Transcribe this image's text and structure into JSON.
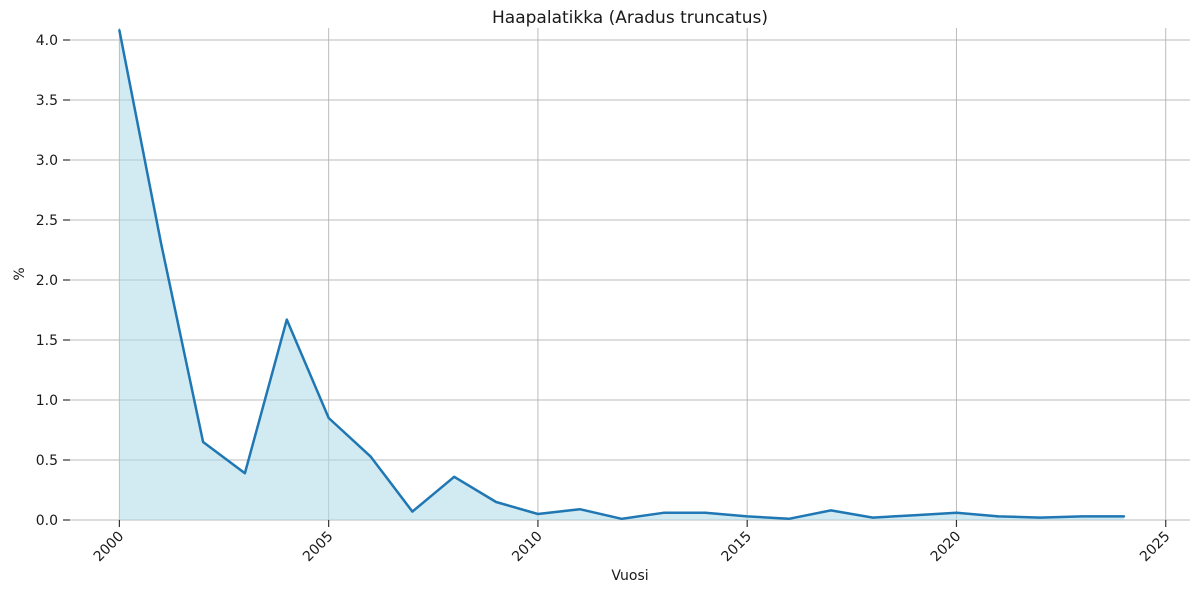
{
  "chart_data": {
    "type": "area",
    "title": "Haapalatikka (Aradus truncatus)",
    "xlabel": "Vuosi",
    "ylabel": "%",
    "x": [
      2000,
      2001,
      2002,
      2003,
      2004,
      2005,
      2006,
      2007,
      2008,
      2009,
      2010,
      2011,
      2012,
      2013,
      2014,
      2015,
      2016,
      2017,
      2018,
      2019,
      2020,
      2021,
      2022,
      2023,
      2024
    ],
    "values": [
      4.08,
      2.3,
      0.65,
      0.39,
      1.67,
      0.85,
      0.53,
      0.07,
      0.36,
      0.15,
      0.05,
      0.09,
      0.01,
      0.06,
      0.06,
      0.03,
      0.01,
      0.08,
      0.02,
      0.04,
      0.06,
      0.03,
      0.02,
      0.03,
      0.03
    ],
    "xticks": [
      2000,
      2005,
      2010,
      2015,
      2020,
      2025
    ],
    "yticks": [
      0.0,
      0.5,
      1.0,
      1.5,
      2.0,
      2.5,
      3.0,
      3.5,
      4.0
    ],
    "xlim": [
      1998.82,
      2025.58
    ],
    "ylim": [
      0,
      4.1
    ],
    "grid": true,
    "xtick_rotation_deg": 45,
    "legend": "none",
    "colors": {
      "line": "#1f77b4",
      "fill": "rgba(173,216,230,0.55)",
      "grid": "#b0b0b0",
      "tick": "#333333",
      "text": "#1a1a1a",
      "background": "#ffffff"
    }
  }
}
